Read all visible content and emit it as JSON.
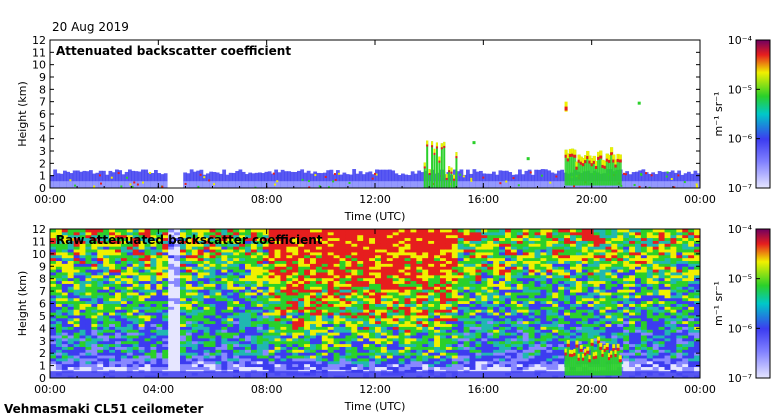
{
  "date": "20 Aug 2019",
  "station": "Vehmasmaki CL51 ceilometer",
  "colors": {
    "low": "#e6e6ff",
    "blue": "#3c3cf0",
    "green": "#2ad02a",
    "yellow": "#f0f000",
    "red": "#e61e1e",
    "purple": "#700060"
  },
  "chart_data": [
    {
      "type": "heatmap",
      "title": "Attenuated backscatter coefficient",
      "xlabel": "Time (UTC)",
      "ylabel": "Height (km)",
      "xlim": [
        0,
        24
      ],
      "ylim": [
        0,
        12
      ],
      "x_ticks": [
        "00:00",
        "04:00",
        "08:00",
        "12:00",
        "16:00",
        "20:00",
        "00:00"
      ],
      "y_ticks": [
        "0",
        "1",
        "2",
        "3",
        "4",
        "5",
        "6",
        "7",
        "8",
        "9",
        "10",
        "11",
        "12"
      ],
      "colorbar": {
        "label": "m⁻¹ sr⁻¹",
        "ticks": [
          "10⁻⁴",
          "10⁻⁵",
          "10⁻⁶",
          "10⁻⁷"
        ],
        "range": [
          1e-07,
          0.0001
        ],
        "scale": "log"
      },
      "features": [
        {
          "name": "boundary-layer",
          "from": 0.0,
          "to": 24.0,
          "top_km": 1.4
        },
        {
          "name": "data-gap",
          "from": 4.3,
          "to": 4.9,
          "top_km": 0
        },
        {
          "name": "rain-column",
          "from": 13.8,
          "to": 15.0,
          "top_km": 4.3
        },
        {
          "name": "cloud",
          "from": 19.0,
          "to": 21.0,
          "top_km": 3.4
        },
        {
          "name": "elevated-cloud",
          "from": 19.0,
          "to": 19.3,
          "top_km": 7.0
        }
      ]
    },
    {
      "type": "heatmap",
      "title": "Raw attenuated backscatter coefficient",
      "xlabel": "Time (UTC)",
      "ylabel": "Height (km)",
      "xlim": [
        0,
        24
      ],
      "ylim": [
        0,
        12
      ],
      "x_ticks": [
        "00:00",
        "04:00",
        "08:00",
        "12:00",
        "16:00",
        "20:00",
        "00:00"
      ],
      "y_ticks": [
        "0",
        "1",
        "2",
        "3",
        "4",
        "5",
        "6",
        "7",
        "8",
        "9",
        "10",
        "11",
        "12"
      ],
      "colorbar": {
        "label": "m⁻¹ sr⁻¹",
        "ticks": [
          "10⁻⁴",
          "10⁻⁵",
          "10⁻⁶",
          "10⁻⁷"
        ],
        "range": [
          1e-07,
          0.0001
        ],
        "scale": "log"
      },
      "features": [
        {
          "name": "noise-field",
          "from": 0.0,
          "to": 24.0,
          "top_km": 12
        },
        {
          "name": "high-noise-band",
          "from": 8.0,
          "to": 15.0,
          "top_km": 12
        },
        {
          "name": "data-gap",
          "from": 4.3,
          "to": 4.9,
          "top_km": 12
        },
        {
          "name": "cloud",
          "from": 19.0,
          "to": 21.0,
          "top_km": 3.4
        }
      ]
    }
  ]
}
